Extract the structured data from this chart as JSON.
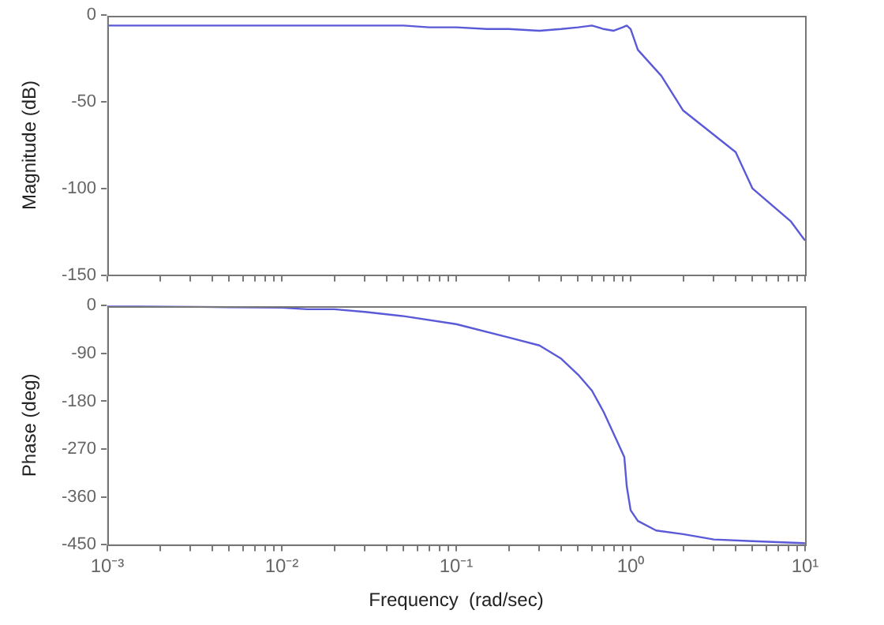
{
  "chart_data": [
    {
      "type": "line",
      "log": "x",
      "ylabel": "Magnitude (dB)",
      "tick_labels": "y",
      "marker": "none",
      "line_style": "solid",
      "grid": false,
      "legend": false,
      "xlim": [
        0.001,
        10
      ],
      "ylim": [
        -150,
        0
      ],
      "yticks": [
        -150,
        -100,
        -50,
        0
      ],
      "xticks": [
        {
          "value": 0.001,
          "label": null
        },
        {
          "value": 0.002,
          "label": null
        },
        {
          "value": 0.003,
          "label": null
        },
        {
          "value": 0.004,
          "label": null
        },
        {
          "value": 0.005,
          "label": null
        },
        {
          "value": 0.006,
          "label": null
        },
        {
          "value": 0.007,
          "label": null
        },
        {
          "value": 0.008,
          "label": null
        },
        {
          "value": 0.009,
          "label": null
        },
        {
          "value": 0.01,
          "label": null
        },
        {
          "value": 0.02,
          "label": null
        },
        {
          "value": 0.03,
          "label": null
        },
        {
          "value": 0.04,
          "label": null
        },
        {
          "value": 0.05,
          "label": null
        },
        {
          "value": 0.06,
          "label": null
        },
        {
          "value": 0.07,
          "label": null
        },
        {
          "value": 0.08,
          "label": null
        },
        {
          "value": 0.09,
          "label": null
        },
        {
          "value": 0.1,
          "label": null
        },
        {
          "value": 0.2,
          "label": null
        },
        {
          "value": 0.3,
          "label": null
        },
        {
          "value": 0.4,
          "label": null
        },
        {
          "value": 0.5,
          "label": null
        },
        {
          "value": 0.6,
          "label": null
        },
        {
          "value": 0.7,
          "label": null
        },
        {
          "value": 0.8,
          "label": null
        },
        {
          "value": 0.9,
          "label": null
        },
        {
          "value": 1,
          "label": null
        },
        {
          "value": 2,
          "label": null
        },
        {
          "value": 3,
          "label": null
        },
        {
          "value": 4,
          "label": null
        },
        {
          "value": 5,
          "label": null
        },
        {
          "value": 6,
          "label": null
        },
        {
          "value": 7,
          "label": null
        },
        {
          "value": 8,
          "label": null
        },
        {
          "value": 9,
          "label": null
        },
        {
          "value": 10,
          "label": null
        }
      ],
      "series": [
        {
          "color": "#5a5ad8",
          "x": [
            0.001,
            0.01,
            0.05,
            0.07,
            0.1,
            0.15,
            0.2,
            0.3,
            0.4,
            0.5,
            0.6,
            0.7,
            0.8,
            0.9,
            0.95,
            1.0,
            1.1,
            1.5,
            2,
            4,
            5,
            8.3,
            10
          ],
          "values": [
            -6,
            -6,
            -6,
            -7,
            -7,
            -8,
            -8,
            -9,
            -8,
            -7,
            -6,
            -8,
            -9,
            -7,
            -6,
            -8,
            -20,
            -35,
            -55,
            -79,
            -100,
            -119,
            -130
          ]
        }
      ]
    },
    {
      "type": "line",
      "log": "x",
      "xlabel": "Frequency  (rad/sec)",
      "ylabel": "Phase (deg)",
      "marker": "none",
      "line_style": "solid",
      "grid": false,
      "legend": false,
      "xlim": [
        0.001,
        10
      ],
      "ylim": [
        -450,
        0
      ],
      "yticks": [
        -450,
        -360,
        -270,
        -180,
        -90,
        0
      ],
      "xticks": [
        {
          "value": 0.001,
          "label": "10⁻³"
        },
        {
          "value": 0.002,
          "label": null
        },
        {
          "value": 0.003,
          "label": null
        },
        {
          "value": 0.004,
          "label": null
        },
        {
          "value": 0.005,
          "label": null
        },
        {
          "value": 0.006,
          "label": null
        },
        {
          "value": 0.007,
          "label": null
        },
        {
          "value": 0.008,
          "label": null
        },
        {
          "value": 0.009,
          "label": null
        },
        {
          "value": 0.01,
          "label": "10⁻²"
        },
        {
          "value": 0.02,
          "label": null
        },
        {
          "value": 0.03,
          "label": null
        },
        {
          "value": 0.04,
          "label": null
        },
        {
          "value": 0.05,
          "label": null
        },
        {
          "value": 0.06,
          "label": null
        },
        {
          "value": 0.07,
          "label": null
        },
        {
          "value": 0.08,
          "label": null
        },
        {
          "value": 0.09,
          "label": null
        },
        {
          "value": 0.1,
          "label": "10⁻¹"
        },
        {
          "value": 0.2,
          "label": null
        },
        {
          "value": 0.3,
          "label": null
        },
        {
          "value": 0.4,
          "label": null
        },
        {
          "value": 0.5,
          "label": null
        },
        {
          "value": 0.6,
          "label": null
        },
        {
          "value": 0.7,
          "label": null
        },
        {
          "value": 0.8,
          "label": null
        },
        {
          "value": 0.9,
          "label": null
        },
        {
          "value": 1,
          "label": "10⁰"
        },
        {
          "value": 2,
          "label": null
        },
        {
          "value": 3,
          "label": null
        },
        {
          "value": 4,
          "label": null
        },
        {
          "value": 5,
          "label": null
        },
        {
          "value": 6,
          "label": null
        },
        {
          "value": 7,
          "label": null
        },
        {
          "value": 8,
          "label": null
        },
        {
          "value": 9,
          "label": null
        },
        {
          "value": 10,
          "label": "10¹"
        }
      ],
      "series": [
        {
          "color": "#5a5ad8",
          "x": [
            0.001,
            0.005,
            0.01,
            0.014,
            0.02,
            0.03,
            0.05,
            0.1,
            0.2,
            0.3,
            0.4,
            0.5,
            0.6,
            0.7,
            0.85,
            0.92,
            0.95,
            1.0,
            1.1,
            1.4,
            2,
            3,
            5,
            10
          ],
          "values": [
            -1,
            -3,
            -4,
            -7,
            -7,
            -12,
            -20,
            -35,
            -60,
            -75,
            -100,
            -130,
            -160,
            -200,
            -260,
            -285,
            -340,
            -385,
            -405,
            -423,
            -430,
            -440,
            -443,
            -447
          ]
        }
      ]
    }
  ]
}
